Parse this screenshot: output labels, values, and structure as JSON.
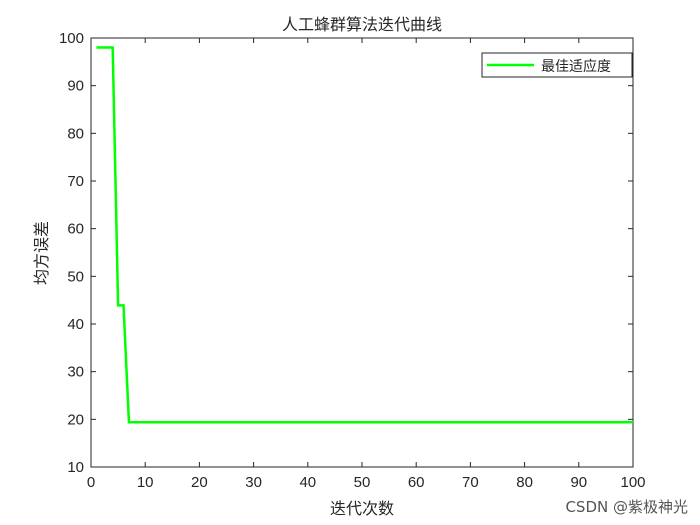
{
  "chart_data": {
    "type": "line",
    "title": "人工蜂群算法迭代曲线",
    "xlabel": "迭代次数",
    "ylabel": "均方误差",
    "xlim": [
      0,
      100
    ],
    "ylim": [
      10,
      100
    ],
    "xticks": [
      0,
      10,
      20,
      30,
      40,
      50,
      60,
      70,
      80,
      90,
      100
    ],
    "yticks": [
      10,
      20,
      30,
      40,
      50,
      60,
      70,
      80,
      90,
      100
    ],
    "grid": false,
    "legend_placement": "top-right",
    "series": [
      {
        "name": "最佳适应度",
        "color": "#00ff00",
        "x": [
          1,
          2,
          3,
          4,
          5,
          6,
          7,
          100
        ],
        "y": [
          98.0,
          98.0,
          98.0,
          98.0,
          43.9,
          43.9,
          19.4,
          19.4
        ]
      }
    ]
  },
  "watermark": "CSDN @紫极神光"
}
